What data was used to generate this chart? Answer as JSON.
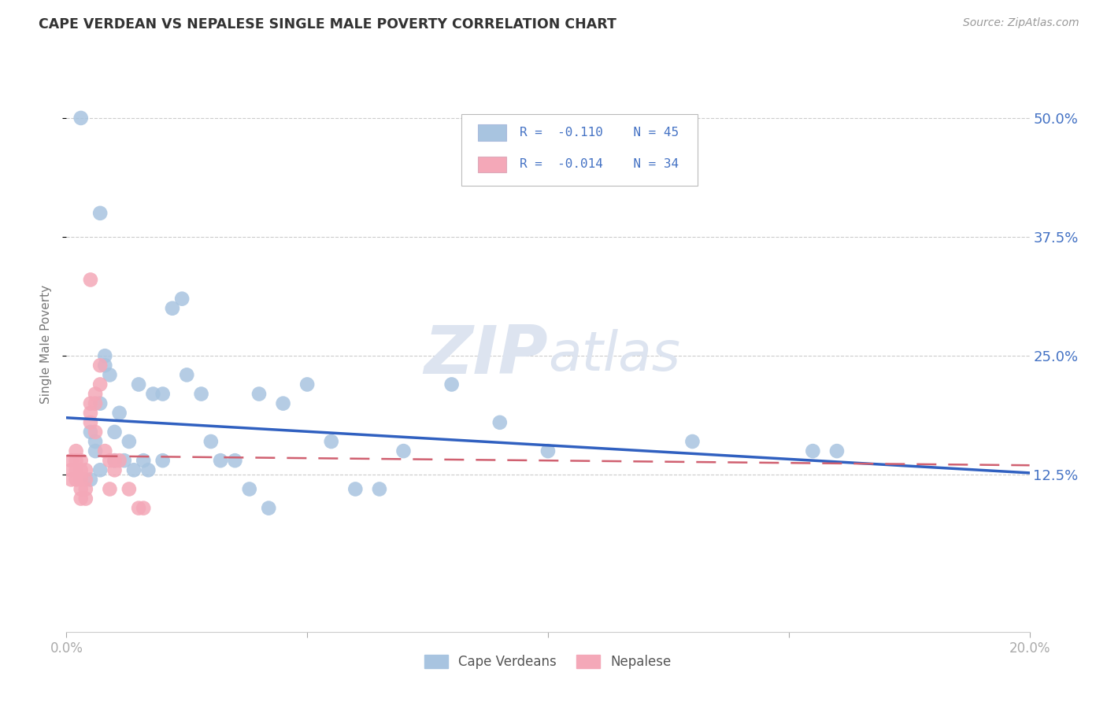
{
  "title": "CAPE VERDEAN VS NEPALESE SINGLE MALE POVERTY CORRELATION CHART",
  "source": "Source: ZipAtlas.com",
  "ylabel": "Single Male Poverty",
  "yticks_labels": [
    "50.0%",
    "37.5%",
    "25.0%",
    "12.5%"
  ],
  "ytick_vals": [
    0.5,
    0.375,
    0.25,
    0.125
  ],
  "xmin": 0.0,
  "xmax": 0.2,
  "ymin": -0.04,
  "ymax": 0.565,
  "cape_verdean_color": "#a8c4e0",
  "nepalese_color": "#f4a8b8",
  "trend_blue": "#3060c0",
  "trend_pink": "#d06070",
  "background_color": "#ffffff",
  "grid_color": "#cccccc",
  "watermark_color": "#dde4f0",
  "cape_verdean_x": [
    0.003,
    0.007,
    0.008,
    0.008,
    0.009,
    0.01,
    0.01,
    0.011,
    0.012,
    0.013,
    0.014,
    0.015,
    0.016,
    0.017,
    0.018,
    0.02,
    0.02,
    0.022,
    0.024,
    0.025,
    0.028,
    0.03,
    0.032,
    0.035,
    0.038,
    0.04,
    0.042,
    0.045,
    0.05,
    0.055,
    0.06,
    0.065,
    0.07,
    0.08,
    0.09,
    0.1,
    0.005,
    0.005,
    0.006,
    0.006,
    0.007,
    0.007,
    0.13,
    0.155,
    0.16
  ],
  "cape_verdean_y": [
    0.5,
    0.4,
    0.25,
    0.24,
    0.23,
    0.14,
    0.17,
    0.19,
    0.14,
    0.16,
    0.13,
    0.22,
    0.14,
    0.13,
    0.21,
    0.21,
    0.14,
    0.3,
    0.31,
    0.23,
    0.21,
    0.16,
    0.14,
    0.14,
    0.11,
    0.21,
    0.09,
    0.2,
    0.22,
    0.16,
    0.11,
    0.11,
    0.15,
    0.22,
    0.18,
    0.15,
    0.17,
    0.12,
    0.16,
    0.15,
    0.13,
    0.2,
    0.16,
    0.15,
    0.15
  ],
  "nepalese_x": [
    0.001,
    0.001,
    0.001,
    0.002,
    0.002,
    0.002,
    0.002,
    0.003,
    0.003,
    0.003,
    0.003,
    0.003,
    0.004,
    0.004,
    0.004,
    0.004,
    0.005,
    0.005,
    0.005,
    0.005,
    0.006,
    0.006,
    0.006,
    0.007,
    0.007,
    0.008,
    0.009,
    0.009,
    0.01,
    0.01,
    0.011,
    0.013,
    0.015,
    0.016
  ],
  "nepalese_y": [
    0.14,
    0.13,
    0.12,
    0.15,
    0.14,
    0.13,
    0.12,
    0.14,
    0.13,
    0.12,
    0.11,
    0.1,
    0.13,
    0.12,
    0.11,
    0.1,
    0.33,
    0.2,
    0.19,
    0.18,
    0.21,
    0.2,
    0.17,
    0.24,
    0.22,
    0.15,
    0.14,
    0.11,
    0.14,
    0.13,
    0.14,
    0.11,
    0.09,
    0.09
  ]
}
